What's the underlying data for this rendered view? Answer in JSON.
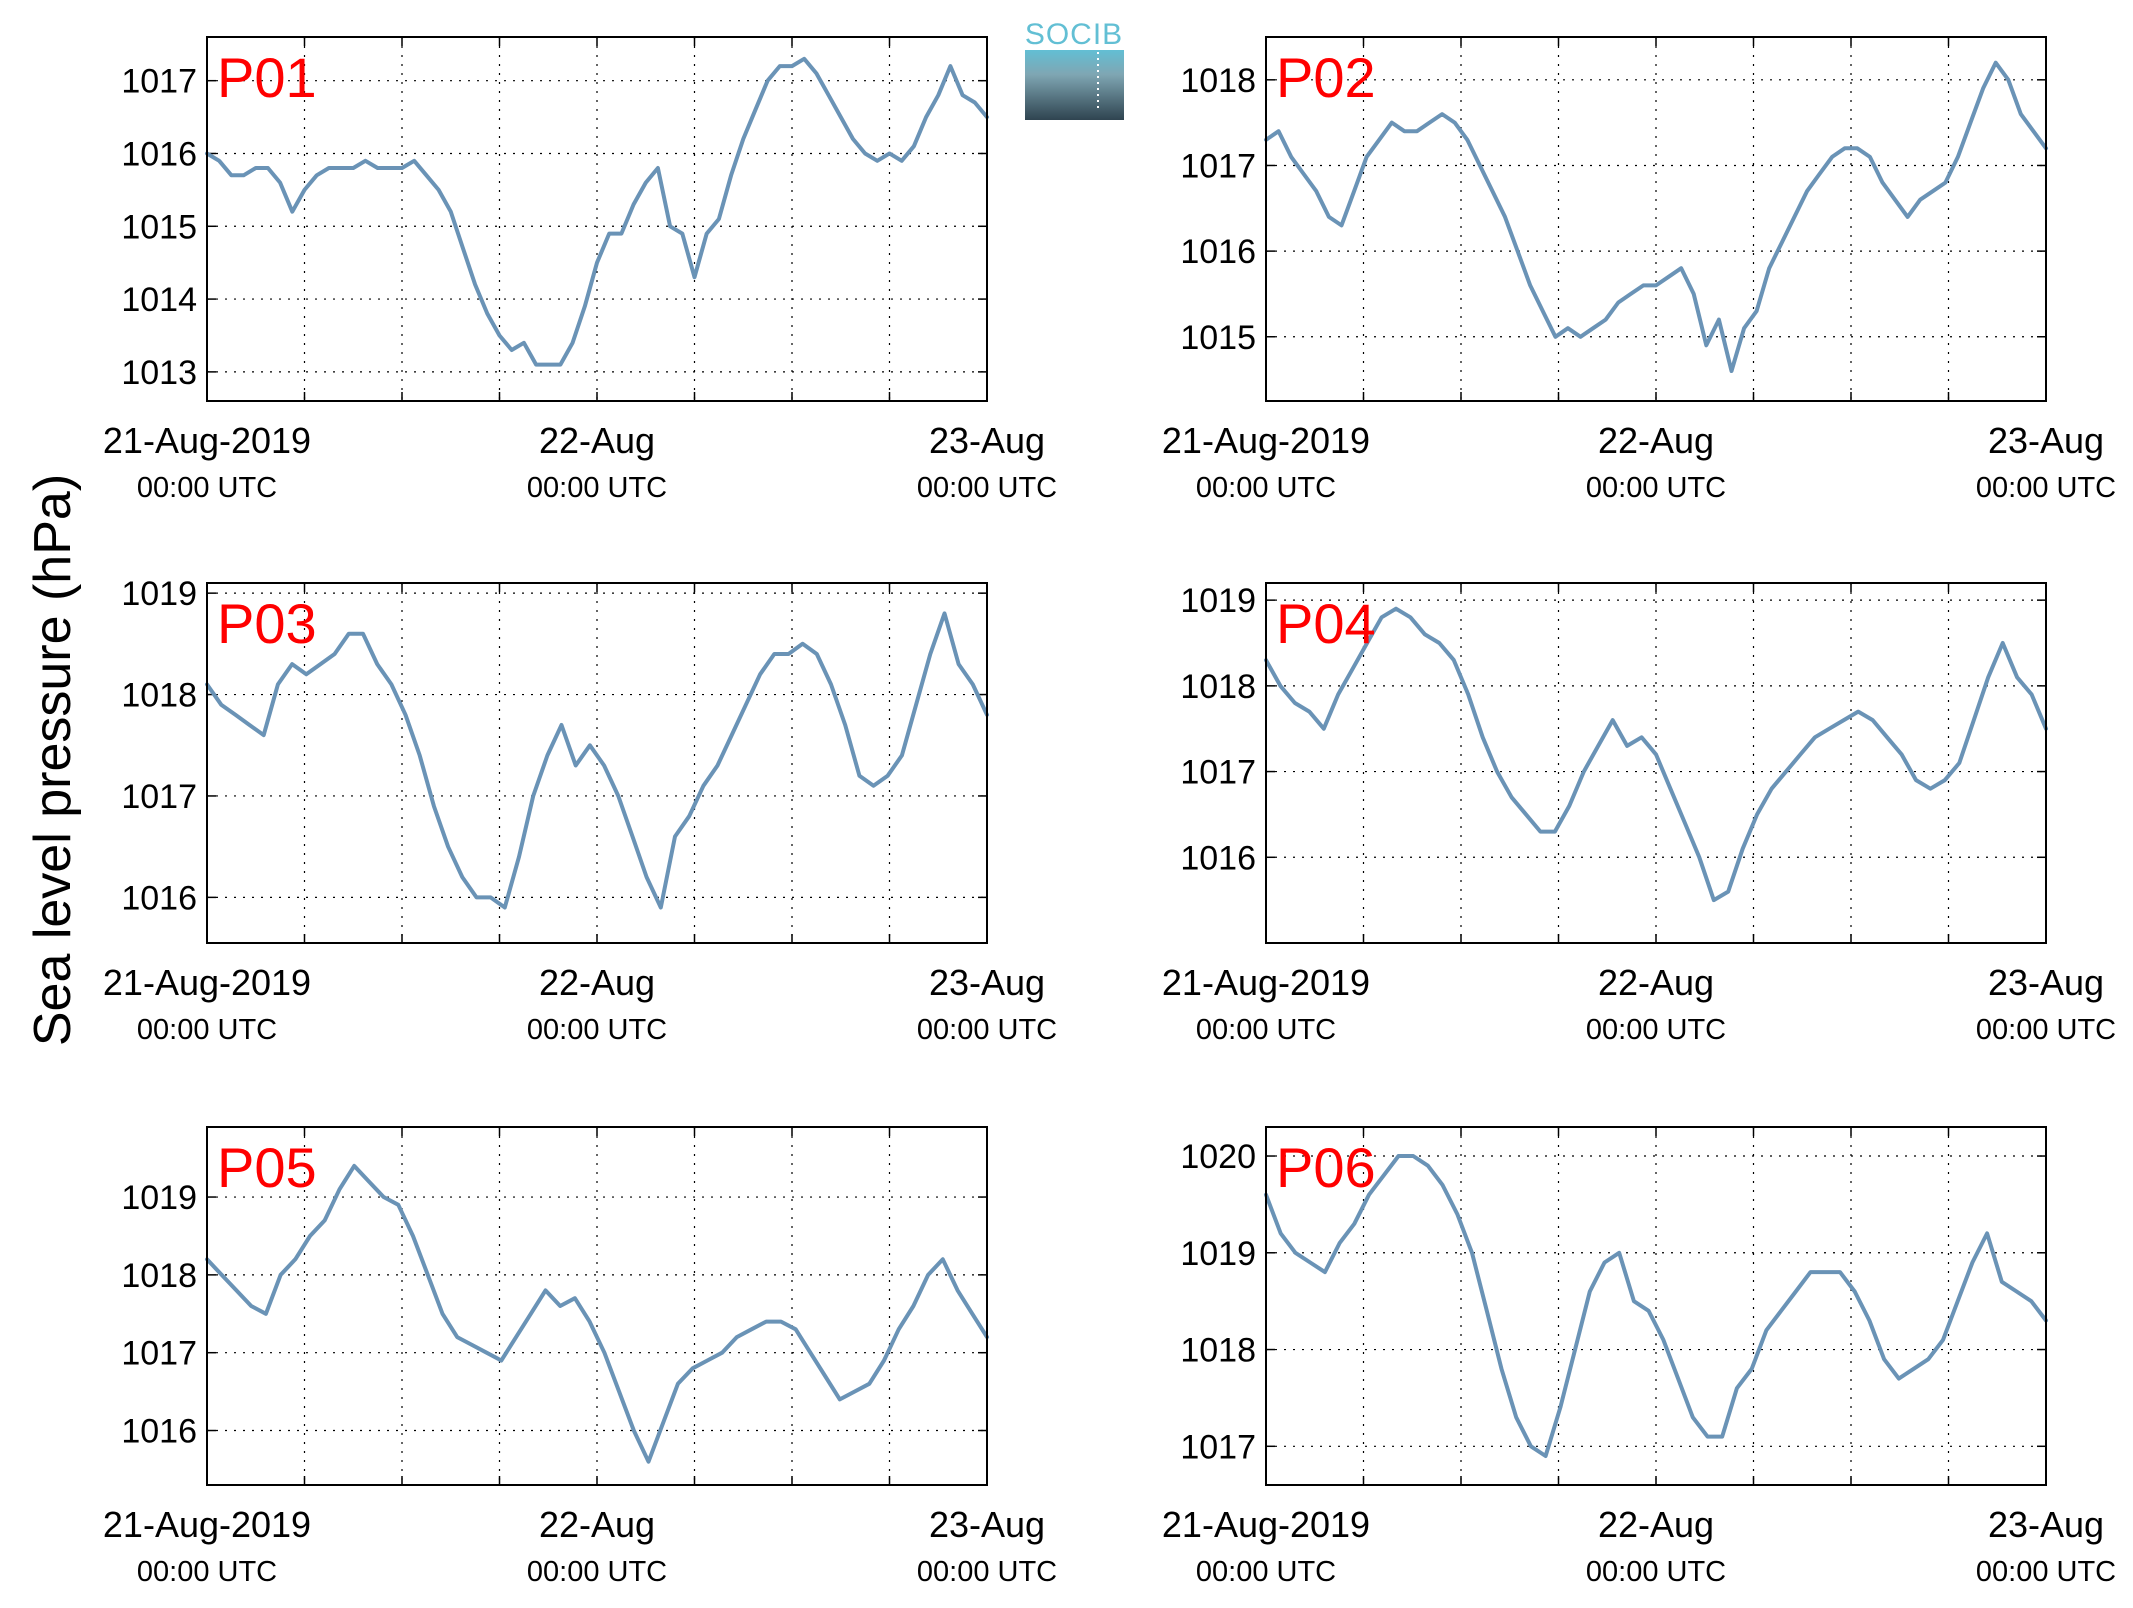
{
  "figure": {
    "ylabel": "Sea level pressure (hPa)",
    "logo_text": "SOCIB"
  },
  "colors": {
    "series": "#6A93B6",
    "panel_label": "#FF0000",
    "logo_top": "#62BFD4",
    "logo_bottom": "#2F4450"
  },
  "chart_data": [
    {
      "type": "line",
      "panel_label": "P01",
      "series": [
        {
          "values": [
            1016.0,
            1015.9,
            1015.7,
            1015.7,
            1015.8,
            1015.8,
            1015.6,
            1015.2,
            1015.5,
            1015.7,
            1015.8,
            1015.8,
            1015.8,
            1015.9,
            1015.8,
            1015.8,
            1015.8,
            1015.9,
            1015.7,
            1015.5,
            1015.2,
            1014.7,
            1014.2,
            1013.8,
            1013.5,
            1013.3,
            1013.4,
            1013.1,
            1013.1,
            1013.1,
            1013.4,
            1013.9,
            1014.5,
            1014.9,
            1014.9,
            1015.3,
            1015.6,
            1015.8,
            1015.0,
            1014.9,
            1014.3,
            1014.9,
            1015.1,
            1015.7,
            1016.2,
            1016.6,
            1017.0,
            1017.2,
            1017.2,
            1017.3,
            1017.1,
            1016.8,
            1016.5,
            1016.2,
            1016.0,
            1015.9,
            1016.0,
            1015.9,
            1016.1,
            1016.5,
            1016.8,
            1017.2,
            1016.8,
            1016.7,
            1016.5
          ]
        }
      ],
      "ylim": [
        1012.6,
        1017.6
      ],
      "yticks": [
        "1013",
        "1014",
        "1015",
        "1016",
        "1017"
      ],
      "xticks": [
        {
          "top": "21-Aug-2019",
          "bottom": "00:00 UTC"
        },
        {
          "top": "22-Aug",
          "bottom": "00:00 UTC"
        },
        {
          "top": "23-Aug",
          "bottom": "00:00 UTC"
        }
      ],
      "grid": true
    },
    {
      "type": "line",
      "panel_label": "P02",
      "series": [
        {
          "values": [
            1017.3,
            1017.4,
            1017.1,
            1016.9,
            1016.7,
            1016.4,
            1016.3,
            1016.7,
            1017.1,
            1017.3,
            1017.5,
            1017.4,
            1017.4,
            1017.5,
            1017.6,
            1017.5,
            1017.3,
            1017.0,
            1016.7,
            1016.4,
            1016.0,
            1015.6,
            1015.3,
            1015.0,
            1015.1,
            1015.0,
            1015.1,
            1015.2,
            1015.4,
            1015.5,
            1015.6,
            1015.6,
            1015.7,
            1015.8,
            1015.5,
            1014.9,
            1015.2,
            1014.6,
            1015.1,
            1015.3,
            1015.8,
            1016.1,
            1016.4,
            1016.7,
            1016.9,
            1017.1,
            1017.2,
            1017.2,
            1017.1,
            1016.8,
            1016.6,
            1016.4,
            1016.6,
            1016.7,
            1016.8,
            1017.1,
            1017.5,
            1017.9,
            1018.2,
            1018.0,
            1017.6,
            1017.4,
            1017.2
          ]
        }
      ],
      "ylim": [
        1014.25,
        1018.5
      ],
      "yticks": [
        "1015",
        "1016",
        "1017",
        "1018"
      ],
      "xticks": [
        {
          "top": "21-Aug-2019",
          "bottom": "00:00 UTC"
        },
        {
          "top": "22-Aug",
          "bottom": "00:00 UTC"
        },
        {
          "top": "23-Aug",
          "bottom": "00:00 UTC"
        }
      ],
      "grid": true
    },
    {
      "type": "line",
      "panel_label": "P03",
      "series": [
        {
          "values": [
            1018.1,
            1017.9,
            1017.8,
            1017.7,
            1017.6,
            1018.1,
            1018.3,
            1018.2,
            1018.3,
            1018.4,
            1018.6,
            1018.6,
            1018.3,
            1018.1,
            1017.8,
            1017.4,
            1016.9,
            1016.5,
            1016.2,
            1016.0,
            1016.0,
            1015.9,
            1016.4,
            1017.0,
            1017.4,
            1017.7,
            1017.3,
            1017.5,
            1017.3,
            1017.0,
            1016.6,
            1016.2,
            1015.9,
            1016.6,
            1016.8,
            1017.1,
            1017.3,
            1017.6,
            1017.9,
            1018.2,
            1018.4,
            1018.4,
            1018.5,
            1018.4,
            1018.1,
            1017.7,
            1017.2,
            1017.1,
            1017.2,
            1017.4,
            1017.9,
            1018.4,
            1018.8,
            1018.3,
            1018.1,
            1017.8
          ]
        }
      ],
      "ylim": [
        1015.55,
        1019.1
      ],
      "yticks": [
        "1016",
        "1017",
        "1018",
        "1019"
      ],
      "xticks": [
        {
          "top": "21-Aug-2019",
          "bottom": "00:00 UTC"
        },
        {
          "top": "22-Aug",
          "bottom": "00:00 UTC"
        },
        {
          "top": "23-Aug",
          "bottom": "00:00 UTC"
        }
      ],
      "grid": true
    },
    {
      "type": "line",
      "panel_label": "P04",
      "series": [
        {
          "values": [
            1018.3,
            1018.0,
            1017.8,
            1017.7,
            1017.5,
            1017.9,
            1018.2,
            1018.5,
            1018.8,
            1018.9,
            1018.8,
            1018.6,
            1018.5,
            1018.3,
            1017.9,
            1017.4,
            1017.0,
            1016.7,
            1016.5,
            1016.3,
            1016.3,
            1016.6,
            1017.0,
            1017.3,
            1017.6,
            1017.3,
            1017.4,
            1017.2,
            1016.8,
            1016.4,
            1016.0,
            1015.5,
            1015.6,
            1016.1,
            1016.5,
            1016.8,
            1017.0,
            1017.2,
            1017.4,
            1017.5,
            1017.6,
            1017.7,
            1017.6,
            1017.4,
            1017.2,
            1016.9,
            1016.8,
            1016.9,
            1017.1,
            1017.6,
            1018.1,
            1018.5,
            1018.1,
            1017.9,
            1017.5
          ]
        }
      ],
      "ylim": [
        1015.0,
        1019.2
      ],
      "yticks": [
        "1016",
        "1017",
        "1018",
        "1019"
      ],
      "xticks": [
        {
          "top": "21-Aug-2019",
          "bottom": "00:00 UTC"
        },
        {
          "top": "22-Aug",
          "bottom": "00:00 UTC"
        },
        {
          "top": "23-Aug",
          "bottom": "00:00 UTC"
        }
      ],
      "grid": true
    },
    {
      "type": "line",
      "panel_label": "P05",
      "series": [
        {
          "values": [
            1018.2,
            1018.0,
            1017.8,
            1017.6,
            1017.5,
            1018.0,
            1018.2,
            1018.5,
            1018.7,
            1019.1,
            1019.4,
            1019.2,
            1019.0,
            1018.9,
            1018.5,
            1018.0,
            1017.5,
            1017.2,
            1017.1,
            1017.0,
            1016.9,
            1017.2,
            1017.5,
            1017.8,
            1017.6,
            1017.7,
            1017.4,
            1017.0,
            1016.5,
            1016.0,
            1015.6,
            1016.1,
            1016.6,
            1016.8,
            1016.9,
            1017.0,
            1017.2,
            1017.3,
            1017.4,
            1017.4,
            1017.3,
            1017.0,
            1016.7,
            1016.4,
            1016.5,
            1016.6,
            1016.9,
            1017.3,
            1017.6,
            1018.0,
            1018.2,
            1017.8,
            1017.5,
            1017.2
          ]
        }
      ],
      "ylim": [
        1015.3,
        1019.9
      ],
      "yticks": [
        "1016",
        "1017",
        "1018",
        "1019"
      ],
      "xticks": [
        {
          "top": "21-Aug-2019",
          "bottom": "00:00 UTC"
        },
        {
          "top": "22-Aug",
          "bottom": "00:00 UTC"
        },
        {
          "top": "23-Aug",
          "bottom": "00:00 UTC"
        }
      ],
      "grid": true
    },
    {
      "type": "line",
      "panel_label": "P06",
      "series": [
        {
          "values": [
            1019.6,
            1019.2,
            1019.0,
            1018.9,
            1018.8,
            1019.1,
            1019.3,
            1019.6,
            1019.8,
            1020.0,
            1020.0,
            1019.9,
            1019.7,
            1019.4,
            1019.0,
            1018.4,
            1017.8,
            1017.3,
            1017.0,
            1016.9,
            1017.4,
            1018.0,
            1018.6,
            1018.9,
            1019.0,
            1018.5,
            1018.4,
            1018.1,
            1017.7,
            1017.3,
            1017.1,
            1017.1,
            1017.6,
            1017.8,
            1018.2,
            1018.4,
            1018.6,
            1018.8,
            1018.8,
            1018.8,
            1018.6,
            1018.3,
            1017.9,
            1017.7,
            1017.8,
            1017.9,
            1018.1,
            1018.5,
            1018.9,
            1019.2,
            1018.7,
            1018.6,
            1018.5,
            1018.3
          ]
        }
      ],
      "ylim": [
        1016.6,
        1020.3
      ],
      "yticks": [
        "1017",
        "1018",
        "1019",
        "1020"
      ],
      "xticks": [
        {
          "top": "21-Aug-2019",
          "bottom": "00:00 UTC"
        },
        {
          "top": "22-Aug",
          "bottom": "00:00 UTC"
        },
        {
          "top": "23-Aug",
          "bottom": "00:00 UTC"
        }
      ],
      "grid": true
    }
  ]
}
